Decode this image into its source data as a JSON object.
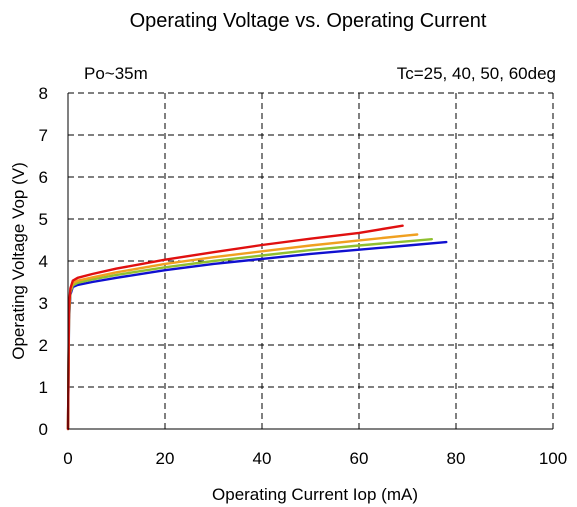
{
  "chart_data": {
    "type": "line",
    "title": "Operating Voltage vs. Operating Current",
    "annotations": {
      "left": "Po~35m",
      "right": "Tc=25, 40, 50, 60deg"
    },
    "xlabel": "Operating Current  Iop (mA)",
    "ylabel": "Operating Voltage  Vop (V)",
    "xlim": [
      0,
      100
    ],
    "ylim": [
      0,
      8
    ],
    "xticks": [
      "0",
      "20",
      "40",
      "60",
      "80",
      "100"
    ],
    "yticks": [
      "0",
      "1",
      "2",
      "3",
      "4",
      "5",
      "6",
      "7",
      "8"
    ],
    "grid": "dashed",
    "legend": "none",
    "series": [
      {
        "color": "#1010d0",
        "x": [
          0,
          0.2,
          0.5,
          1,
          2,
          5,
          10,
          20,
          30,
          40,
          50,
          60,
          70,
          78
        ],
        "y": [
          0,
          2.6,
          3.2,
          3.38,
          3.43,
          3.5,
          3.6,
          3.78,
          3.93,
          4.05,
          4.17,
          4.27,
          4.37,
          4.45
        ]
      },
      {
        "color": "#90c030",
        "x": [
          0,
          0.2,
          0.5,
          1,
          2,
          5,
          10,
          20,
          30,
          40,
          50,
          60,
          70,
          75
        ],
        "y": [
          0,
          2.7,
          3.25,
          3.42,
          3.48,
          3.56,
          3.67,
          3.85,
          4.0,
          4.13,
          4.26,
          4.37,
          4.47,
          4.52
        ]
      },
      {
        "color": "#f0a020",
        "x": [
          0,
          0.2,
          0.5,
          1,
          2,
          5,
          10,
          20,
          30,
          40,
          50,
          60,
          70,
          72
        ],
        "y": [
          0,
          2.8,
          3.3,
          3.47,
          3.53,
          3.61,
          3.73,
          3.93,
          4.09,
          4.23,
          4.37,
          4.49,
          4.61,
          4.63
        ]
      },
      {
        "color": "#e01010",
        "x": [
          0,
          0.2,
          0.5,
          1,
          2,
          5,
          10,
          20,
          30,
          40,
          50,
          60,
          69
        ],
        "y": [
          0,
          2.9,
          3.35,
          3.53,
          3.6,
          3.69,
          3.82,
          4.03,
          4.21,
          4.38,
          4.53,
          4.67,
          4.84
        ]
      }
    ]
  }
}
